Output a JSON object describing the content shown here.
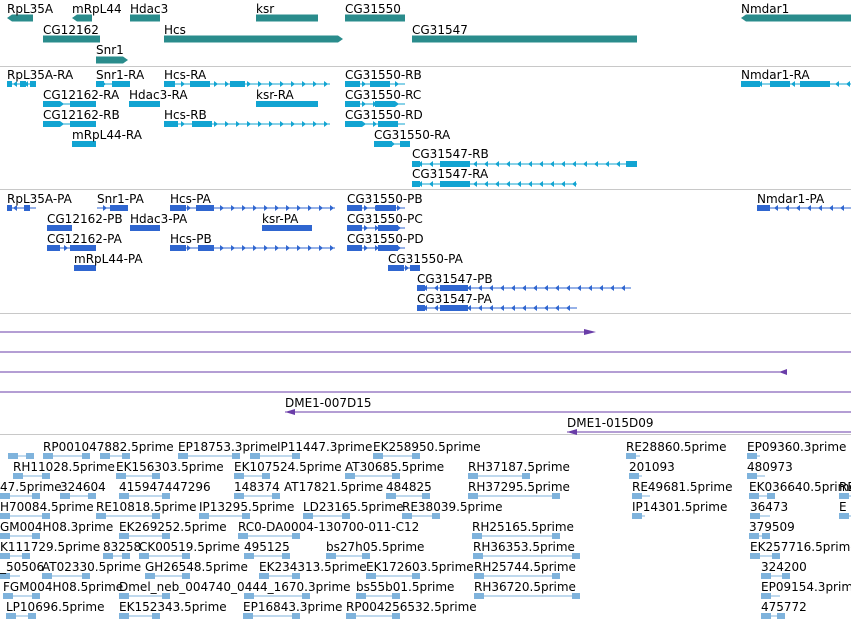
{
  "colors": {
    "gene": "#2a8c8c",
    "rna": "#12a4d2",
    "protein": "#2f66d0",
    "clone": "#6a3da8",
    "est": "#7fb3dc",
    "divider": "#c8c8c8"
  },
  "gene_track": {
    "labels": [
      "RpL35A",
      "mRpL44",
      "Hdac3",
      "ksr",
      "CG31550",
      "Nmdar1",
      "CG12162",
      "Hcs",
      "CG31547",
      "Snr1"
    ]
  },
  "rna_track": {
    "labels": [
      "RpL35A-RA",
      "Snr1-RA",
      "Hcs-RA",
      "CG31550-RB",
      "Nmdar1-RA",
      "CG12162-RA",
      "Hdac3-RA",
      "ksr-RA",
      "CG31550-RC",
      "CG12162-RB",
      "Hcs-RB",
      "CG31550-RD",
      "mRpL44-RA",
      "CG31550-RA",
      "CG31547-RB",
      "CG31547-RA"
    ]
  },
  "protein_track": {
    "labels": [
      "RpL35A-PA",
      "Snr1-PA",
      "Hcs-PA",
      "CG31550-PB",
      "Nmdar1-PA",
      "CG12162-PB",
      "Hdac3-PA",
      "ksr-PA",
      "CG31550-PC",
      "CG12162-PA",
      "Hcs-PB",
      "CG31550-PD",
      "mRpL44-PA",
      "CG31550-PA",
      "CG31547-PB",
      "CG31547-PA"
    ]
  },
  "clone_track": {
    "labels": [
      "DME1-007D15",
      "DME1-015D09"
    ]
  },
  "est_track": {
    "labels": [
      "RP001047882.5prime",
      "EP18753.3prime",
      "IP11447.3prime",
      "EK258950.5prime",
      "RE28860.5prime",
      "EP09360.3prime",
      "RH11028.5prime",
      "EK156303.5prime",
      "EK107524.5prime",
      "AT30685.5prime",
      "RH37187.5prime",
      "201093",
      "480973",
      "47.5prime",
      "324604",
      "415947447296",
      "148374",
      "AT17821.5prime",
      "484825",
      "RH37295.5prime",
      "RE49681.5prime",
      "EK036640.5prime",
      "RE",
      "H70084.5prime",
      "RE10818.5prime",
      "IP13295.5prime",
      "LD23165.5prime",
      "RE38039.5prime",
      "IP14301.5prime",
      "36473",
      "E",
      "GM004H08.3prime",
      "EK269252.5prime",
      "RC0-DA0004-130700-011-C12",
      "RH25165.5prime",
      "379509",
      "K111729.5prime",
      "83258",
      "CK00519.5prime",
      "495125",
      "bs27h05.5prime",
      "RH36353.5prime",
      "EK257716.5prime",
      "_50506",
      "AT02330.5prime",
      "GH26548.5prime",
      "EK234313.5prime",
      "EK172603.5prime",
      "RH25744.5prime",
      "324200",
      "FGM004H08.5prime",
      "Dmel_neb_004740_0444_1670.3prime",
      "bs55b01.5prime",
      "RH36720.5prime",
      "EP09154.3prime",
      "LP10696.5prime",
      "EK152343.5prime",
      "EP16843.3prime",
      "RP004256532.5prime",
      "475772"
    ]
  }
}
